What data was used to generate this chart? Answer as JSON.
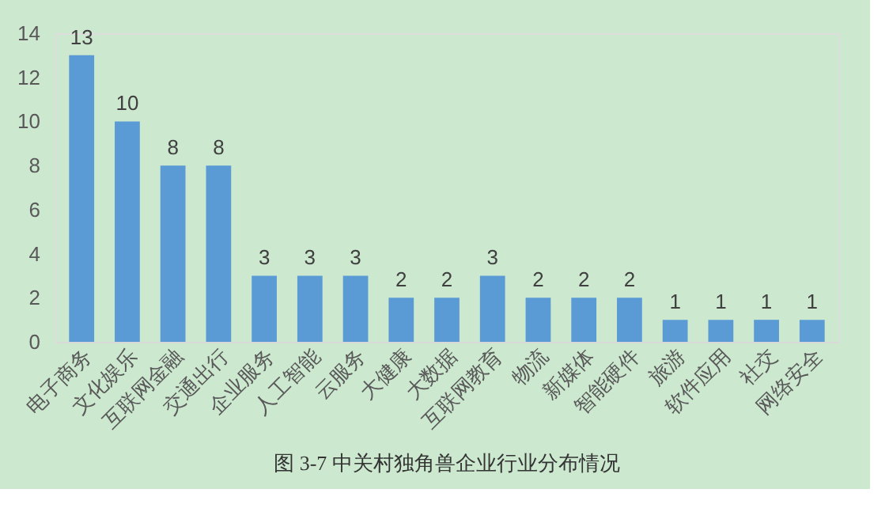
{
  "chart_data": {
    "type": "bar",
    "categories": [
      "电子商务",
      "文化娱乐",
      "互联网金融",
      "交通出行",
      "企业服务",
      "人工智能",
      "云服务",
      "大健康",
      "大数据",
      "互联网教育",
      "物流",
      "新媒体",
      "智能硬件",
      "旅游",
      "软件应用",
      "社交",
      "网络安全"
    ],
    "values": [
      13,
      10,
      8,
      8,
      3,
      3,
      3,
      2,
      2,
      3,
      2,
      2,
      2,
      1,
      1,
      1,
      1
    ],
    "color": "#5b9bd5",
    "ylim": [
      0,
      14
    ],
    "yticks": [
      0,
      2,
      4,
      6,
      8,
      10,
      12,
      14
    ],
    "grid": false,
    "data_labels": true,
    "annotations": [
      "图 3-7 中关村独角兽企业行业分布情况"
    ]
  }
}
